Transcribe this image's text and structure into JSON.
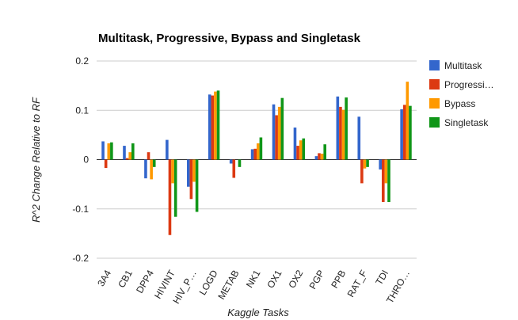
{
  "chart_data": {
    "type": "bar",
    "title": "Multitask, Progressive, Bypass and Singletask",
    "xlabel": "Kaggle Tasks",
    "ylabel": "R^2 Change Relative to RF",
    "ylim": [
      -0.2,
      0.2
    ],
    "yticks": [
      "0.2",
      "0.1",
      "0",
      "-0.1",
      "-0.2"
    ],
    "ytick_values": [
      0.2,
      0.1,
      0,
      -0.1,
      -0.2
    ],
    "grid": true,
    "legend_position": "right",
    "categories": [
      "3A4",
      "CB1",
      "DPP4",
      "HIVINT",
      "HIV_P…",
      "LOGD",
      "METAB",
      "NK1",
      "OX1",
      "OX2",
      "PGP",
      "PPB",
      "RAT_F",
      "TDI",
      "THRO…"
    ],
    "series": [
      {
        "name": "Multitask",
        "color": "#3366cc",
        "values": [
          0.037,
          0.028,
          -0.038,
          0.04,
          -0.055,
          0.132,
          -0.008,
          0.021,
          0.112,
          0.065,
          0.007,
          0.128,
          0.087,
          -0.02,
          0.102
        ]
      },
      {
        "name": "Progressi…",
        "color": "#dc3912",
        "values": [
          -0.017,
          0.003,
          0.015,
          -0.153,
          -0.08,
          0.13,
          -0.037,
          0.022,
          0.09,
          0.028,
          0.013,
          0.107,
          -0.048,
          -0.086,
          0.111
        ]
      },
      {
        "name": "Bypass",
        "color": "#ff9900",
        "values": [
          0.033,
          0.015,
          -0.04,
          -0.048,
          -0.045,
          0.138,
          0.0,
          0.033,
          0.107,
          0.039,
          0.012,
          0.101,
          -0.018,
          -0.048,
          0.158
        ]
      },
      {
        "name": "Singletask",
        "color": "#109618",
        "values": [
          0.035,
          0.033,
          -0.015,
          -0.116,
          -0.106,
          0.14,
          -0.015,
          0.045,
          0.125,
          0.043,
          0.031,
          0.126,
          -0.015,
          -0.086,
          0.109
        ]
      }
    ]
  }
}
